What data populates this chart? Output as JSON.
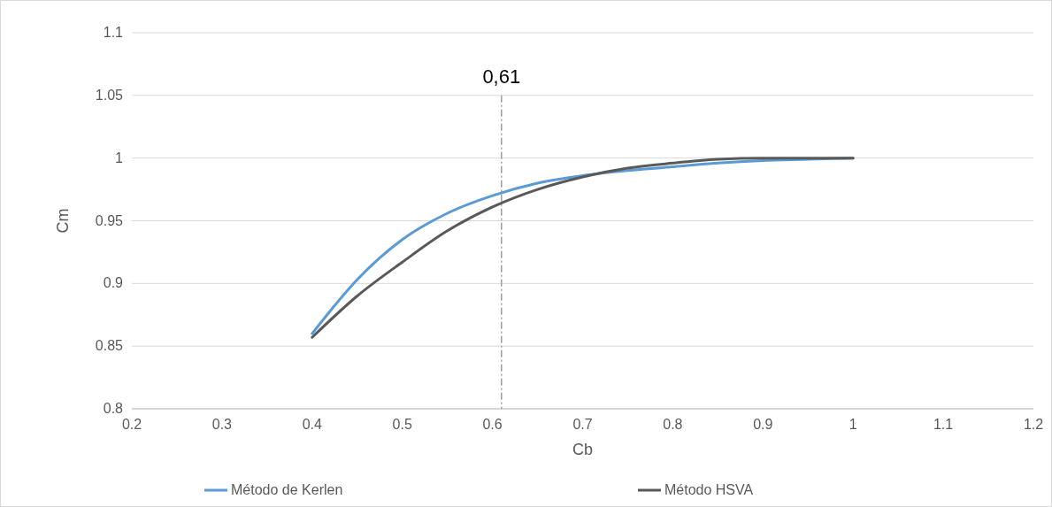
{
  "chart_data": {
    "type": "line",
    "xlabel": "Cb",
    "ylabel": "Cm",
    "xlim": [
      0.2,
      1.2
    ],
    "xticks": [
      0.2,
      0.3,
      0.4,
      0.5,
      0.6,
      0.7,
      0.8,
      0.9,
      1,
      1.1,
      1.2
    ],
    "ylim": [
      0.8,
      1.1
    ],
    "yticks": [
      0.8,
      0.85,
      0.9,
      0.95,
      1,
      1.05,
      1.1
    ],
    "grid": "y",
    "legend": "bottom",
    "line_style": "solid",
    "ref_lines": [
      {
        "axis": "x",
        "value": 0.61,
        "label": "0,61",
        "color": "#a0a0a0",
        "line_style": "dashdot"
      }
    ],
    "series": [
      {
        "name": "Método de Kerlen",
        "color": "#5b9bd5",
        "x": [
          0.4,
          0.42,
          0.45,
          0.5,
          0.55,
          0.6,
          0.65,
          0.7,
          0.75,
          0.8,
          0.85,
          0.9,
          0.95,
          1
        ],
        "values": [
          0.86,
          0.878,
          0.903,
          0.935,
          0.956,
          0.97,
          0.98,
          0.986,
          0.99,
          0.993,
          0.996,
          0.998,
          0.999,
          1
        ]
      },
      {
        "name": "Método HSVA",
        "color": "#595959",
        "x": [
          0.4,
          0.45,
          0.5,
          0.55,
          0.6,
          0.65,
          0.7,
          0.75,
          0.8,
          0.85,
          0.9,
          0.95,
          1
        ],
        "values": [
          0.857,
          0.89,
          0.917,
          0.942,
          0.961,
          0.975,
          0.985,
          0.992,
          0.996,
          0.999,
          1,
          1,
          1
        ]
      }
    ]
  }
}
